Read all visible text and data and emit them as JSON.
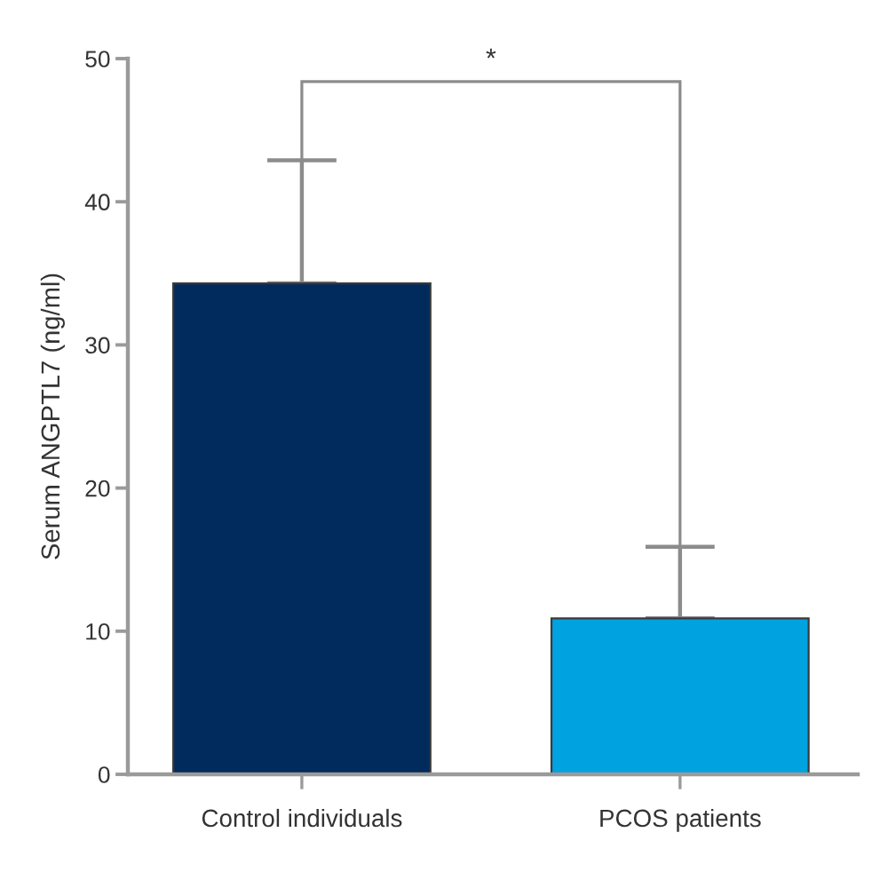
{
  "chart_data": {
    "type": "bar",
    "ylabel": "Serum ANGPTL7 (ng/ml)",
    "categories": [
      "Control individuals",
      "PCOS patients"
    ],
    "values": [
      34.3,
      10.9
    ],
    "colors": [
      "#002b5c",
      "#00a2e0"
    ],
    "errors": [
      [
        34.3,
        42.9
      ],
      [
        10.9,
        15.9
      ]
    ],
    "ylim": [
      0,
      50
    ],
    "yticks": [
      0,
      10,
      20,
      30,
      40,
      50
    ],
    "annotations": [
      "*"
    ]
  }
}
